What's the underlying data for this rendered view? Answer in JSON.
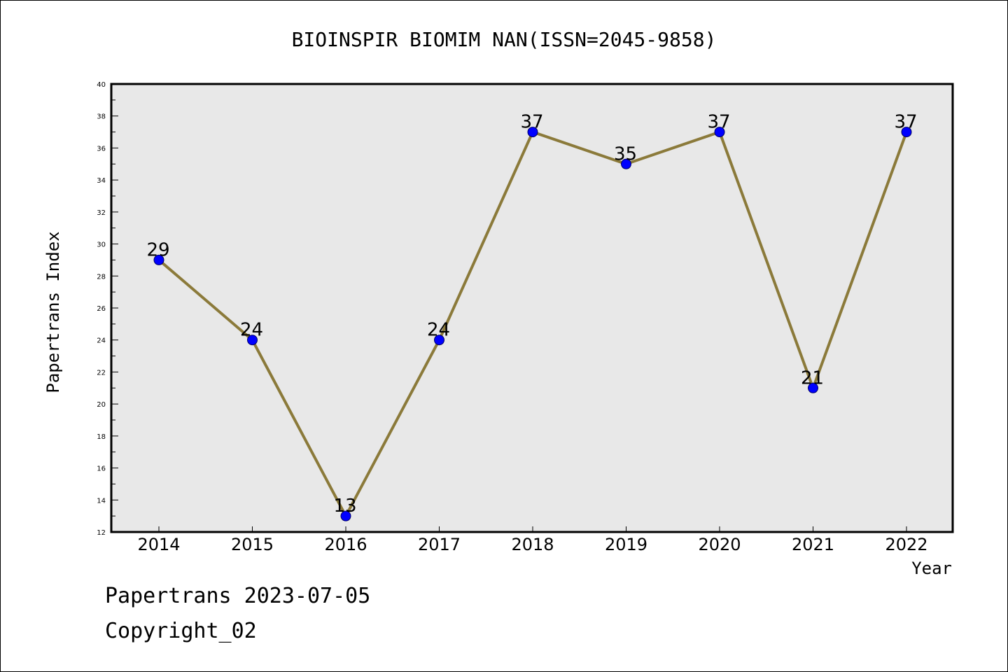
{
  "chart_data": {
    "type": "line",
    "title": "BIOINSPIR BIOMIM NAN(ISSN=2045-9858)",
    "xlabel": "Year",
    "ylabel": "Papertrans Index",
    "categories": [
      "2014",
      "2015",
      "2016",
      "2017",
      "2018",
      "2019",
      "2020",
      "2021",
      "2022"
    ],
    "series": [
      {
        "values": [
          29,
          24,
          13,
          24,
          37,
          35,
          37,
          21,
          37
        ]
      }
    ],
    "ylim": [
      12,
      40
    ],
    "ytick_step": 2,
    "grid": false,
    "colors": {
      "line": "#8b7a3a",
      "marker": "#0000ff",
      "marker_edge": "#000066",
      "plot_bg": "#e8e8e8"
    }
  },
  "footer": {
    "line1": "Papertrans 2023-07-05",
    "line2": "Copyright_02"
  }
}
